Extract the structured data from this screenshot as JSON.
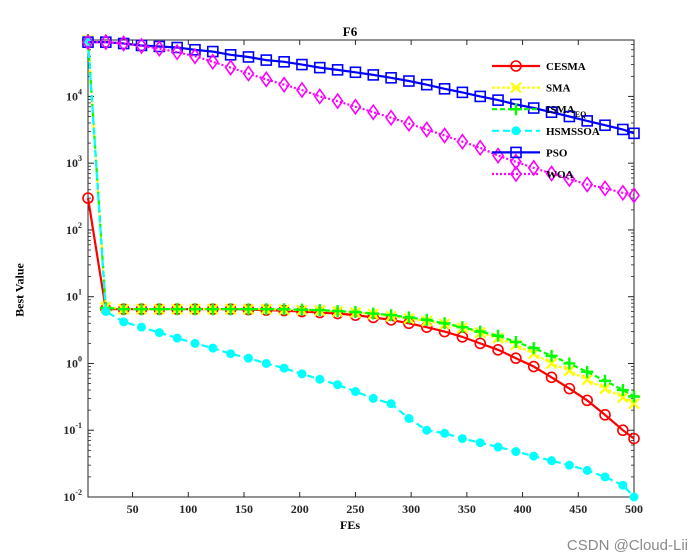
{
  "chart_data": {
    "type": "line",
    "title": "F6",
    "xlabel": "FEs",
    "ylabel": "Best Value",
    "xlim": [
      10,
      500
    ],
    "ylim": [
      0.01,
      70000
    ],
    "yscale": "log",
    "grid": false,
    "legend_position": "top-right",
    "x_ticks": [
      50,
      100,
      150,
      200,
      250,
      300,
      350,
      400,
      450,
      500
    ],
    "y_ticks": [
      {
        "value": 0.01,
        "base": "10",
        "exp": "-2"
      },
      {
        "value": 0.1,
        "base": "10",
        "exp": "-1"
      },
      {
        "value": 1,
        "base": "10",
        "exp": "0"
      },
      {
        "value": 10,
        "base": "10",
        "exp": "1"
      },
      {
        "value": 100,
        "base": "10",
        "exp": "2"
      },
      {
        "value": 1000,
        "base": "10",
        "exp": "3"
      },
      {
        "value": 10000,
        "base": "10",
        "exp": "4"
      }
    ],
    "x": [
      10,
      26,
      42,
      58,
      74,
      90,
      106,
      122,
      138,
      154,
      170,
      186,
      202,
      218,
      234,
      250,
      266,
      282,
      298,
      314,
      330,
      346,
      362,
      378,
      394,
      410,
      426,
      442,
      458,
      474,
      490,
      500
    ],
    "series": [
      {
        "name": "CESMA",
        "color": "#ff0000",
        "dash": "",
        "marker": "circle",
        "values": [
          300,
          6.5,
          6.5,
          6.5,
          6.5,
          6.5,
          6.5,
          6.5,
          6.5,
          6.4,
          6.3,
          6.2,
          6.0,
          5.8,
          5.6,
          5.3,
          4.9,
          4.5,
          4.0,
          3.5,
          3.0,
          2.5,
          2.0,
          1.6,
          1.2,
          0.9,
          0.62,
          0.42,
          0.28,
          0.17,
          0.1,
          0.075
        ]
      },
      {
        "name": "SMA",
        "color": "#ffff00",
        "dash": "3,2",
        "marker": "x",
        "values": [
          70000,
          7.0,
          6.5,
          6.5,
          6.5,
          6.5,
          6.5,
          6.5,
          6.5,
          6.5,
          6.5,
          6.4,
          6.3,
          6.2,
          6.0,
          5.8,
          5.5,
          5.1,
          4.7,
          4.3,
          3.9,
          3.4,
          2.9,
          2.4,
          1.9,
          1.4,
          1.0,
          0.78,
          0.57,
          0.42,
          0.31,
          0.25
        ]
      },
      {
        "name": "ISMA",
        "name_sub": "EQ",
        "color": "#00ff00",
        "dash": "5,3",
        "marker": "plus",
        "values": [
          70000,
          6.8,
          6.5,
          6.5,
          6.5,
          6.5,
          6.5,
          6.5,
          6.5,
          6.5,
          6.5,
          6.5,
          6.4,
          6.3,
          6.1,
          5.9,
          5.6,
          5.3,
          4.9,
          4.5,
          4.0,
          3.5,
          3.0,
          2.6,
          2.1,
          1.7,
          1.3,
          1.0,
          0.75,
          0.55,
          0.4,
          0.32
        ]
      },
      {
        "name": "HSMSSOA",
        "color": "#00ffff",
        "dash": "7,4",
        "marker": "dot",
        "values": [
          70000,
          6.0,
          4.2,
          3.5,
          2.9,
          2.4,
          2.0,
          1.7,
          1.4,
          1.2,
          1.0,
          0.85,
          0.7,
          0.58,
          0.48,
          0.38,
          0.3,
          0.25,
          0.15,
          0.1,
          0.09,
          0.075,
          0.065,
          0.056,
          0.048,
          0.041,
          0.035,
          0.03,
          0.025,
          0.02,
          0.015,
          0.01
        ]
      },
      {
        "name": "PSO",
        "color": "#0000ff",
        "dash": "",
        "marker": "square",
        "values": [
          65000,
          65000,
          62000,
          58000,
          56000,
          54000,
          50000,
          47000,
          42000,
          39000,
          35000,
          33000,
          30000,
          27000,
          25000,
          23000,
          21000,
          19000,
          17000,
          15000,
          13000,
          11500,
          10000,
          8800,
          7600,
          6700,
          5800,
          5000,
          4300,
          3700,
          3200,
          2800
        ]
      },
      {
        "name": "WOA",
        "color": "#ff00ff",
        "dash": "2,2",
        "marker": "diamond",
        "values": [
          65000,
          65000,
          62000,
          57000,
          52000,
          46000,
          40000,
          33000,
          27000,
          22000,
          18000,
          15000,
          12500,
          10000,
          8500,
          7000,
          5800,
          4800,
          3900,
          3200,
          2600,
          2100,
          1700,
          1300,
          1050,
          850,
          700,
          580,
          480,
          420,
          360,
          330
        ]
      }
    ]
  },
  "watermark": "CSDN @Cloud-Lii"
}
